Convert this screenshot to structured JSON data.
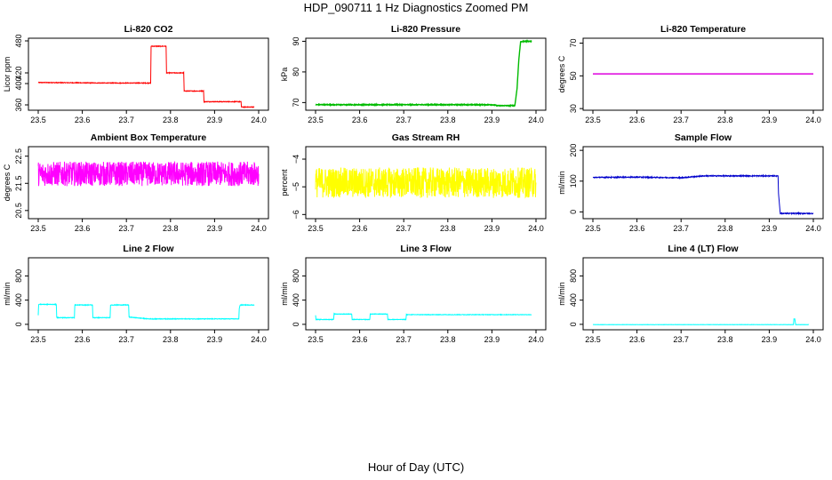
{
  "page": {
    "title": "HDP_090711  1 Hz Diagnostics Zoomed PM",
    "xlabel": "Hour of Day (UTC)"
  },
  "chart_data": [
    {
      "type": "line",
      "title": "Li-820 CO2",
      "xlabel": "",
      "ylabel": "Licor ppm",
      "xlim": [
        23.5,
        24.0
      ],
      "ylim": [
        350,
        485
      ],
      "xticks": [
        23.5,
        23.6,
        23.7,
        23.8,
        23.9,
        24.0
      ],
      "yticks": [
        360,
        400,
        420,
        480
      ],
      "color": "#ff0000",
      "noise": 0.6,
      "series": [
        {
          "x": [
            23.5,
            23.655,
            23.755,
            23.756,
            23.79,
            23.791,
            23.83,
            23.831,
            23.875,
            23.876,
            23.96,
            23.961,
            23.99
          ],
          "y": [
            402,
            401,
            401,
            470,
            470,
            420,
            420,
            386,
            386,
            366,
            366,
            356,
            356
          ]
        }
      ]
    },
    {
      "type": "line",
      "title": "Li-820 Pressure",
      "xlabel": "",
      "ylabel": "kPa",
      "xlim": [
        23.5,
        24.0
      ],
      "ylim": [
        67.5,
        91
      ],
      "xticks": [
        23.5,
        23.6,
        23.7,
        23.8,
        23.9,
        24.0
      ],
      "yticks": [
        70,
        80,
        90
      ],
      "color": "#00bb00",
      "noise": 0.12,
      "series": [
        {
          "x": [
            23.5,
            23.9,
            23.912,
            23.952,
            23.957,
            23.961,
            23.965,
            23.97,
            23.99
          ],
          "y": [
            69.3,
            69.3,
            69.0,
            69.0,
            74.5,
            84.0,
            89.7,
            90.0,
            90.0
          ]
        }
      ]
    },
    {
      "type": "line",
      "title": "Li-820 Temperature",
      "xlabel": "",
      "ylabel": "degrees C",
      "xlim": [
        23.5,
        24.0
      ],
      "ylim": [
        29,
        73
      ],
      "xticks": [
        23.5,
        23.6,
        23.7,
        23.8,
        23.9,
        24.0
      ],
      "yticks": [
        30,
        50,
        70
      ],
      "color": "#dd00dd",
      "noise": 0,
      "series": [
        {
          "x": [
            23.5,
            24.0
          ],
          "y": [
            51.2,
            51.2
          ]
        }
      ]
    },
    {
      "type": "line",
      "title": "Ambient Box Temperature",
      "xlabel": "",
      "ylabel": "degrees C",
      "xlim": [
        23.5,
        24.0
      ],
      "ylim": [
        20.2,
        22.85
      ],
      "xticks": [
        23.5,
        23.6,
        23.7,
        23.8,
        23.9,
        24.0
      ],
      "yticks": [
        20.5,
        21.5,
        22.5
      ],
      "color": "#ff00ff",
      "noise": 0.45,
      "series": [
        {
          "x": [
            23.5,
            24.0
          ],
          "y": [
            21.85,
            21.85
          ]
        }
      ]
    },
    {
      "type": "line",
      "title": "Gas Stream RH",
      "xlabel": "",
      "ylabel": "percent",
      "xlim": [
        23.5,
        24.0
      ],
      "ylim": [
        -6.15,
        -3.55
      ],
      "xticks": [
        23.5,
        23.6,
        23.7,
        23.8,
        23.9,
        24.0
      ],
      "yticks": [
        -6.0,
        -5.0,
        -4.0
      ],
      "color": "#ffff00",
      "noise": 0.55,
      "series": [
        {
          "x": [
            23.5,
            24.0
          ],
          "y": [
            -4.85,
            -4.85
          ]
        }
      ]
    },
    {
      "type": "line",
      "title": "Sample Flow",
      "xlabel": "",
      "ylabel": "ml/min",
      "xlim": [
        23.5,
        24.0
      ],
      "ylim": [
        -22,
        212
      ],
      "xticks": [
        23.5,
        23.6,
        23.7,
        23.8,
        23.9,
        24.0
      ],
      "yticks": [
        0,
        100,
        200
      ],
      "color": "#0000cc",
      "noise": 1.5,
      "series": [
        {
          "x": [
            23.5,
            23.6,
            23.7,
            23.75,
            23.92,
            23.921,
            23.925,
            24.0
          ],
          "y": [
            112,
            113,
            111,
            117,
            117,
            60,
            -5,
            -5
          ]
        }
      ]
    },
    {
      "type": "line",
      "title": "Line 2 Flow",
      "xlabel": "",
      "ylabel": "ml/min",
      "xlim": [
        23.5,
        24.0
      ],
      "ylim": [
        -90,
        1100
      ],
      "xticks": [
        23.5,
        23.6,
        23.7,
        23.8,
        23.9,
        24.0
      ],
      "yticks": [
        0,
        400,
        800
      ],
      "color": "#00ffff",
      "noise": 5,
      "series": [
        {
          "x": [
            23.5,
            23.501,
            23.541,
            23.542,
            23.582,
            23.583,
            23.623,
            23.624,
            23.663,
            23.664,
            23.705,
            23.706,
            23.75,
            23.955,
            23.956,
            23.958,
            23.99
          ],
          "y": [
            150,
            330,
            330,
            110,
            110,
            320,
            320,
            110,
            110,
            320,
            320,
            120,
            90,
            90,
            260,
            320,
            320
          ]
        }
      ]
    },
    {
      "type": "line",
      "title": "Line 3 Flow",
      "xlabel": "",
      "ylabel": "ml/min",
      "xlim": [
        23.5,
        24.0
      ],
      "ylim": [
        -90,
        1100
      ],
      "xticks": [
        23.5,
        23.6,
        23.7,
        23.8,
        23.9,
        24.0
      ],
      "yticks": [
        0,
        400,
        800
      ],
      "color": "#00ffff",
      "noise": 4,
      "series": [
        {
          "x": [
            23.5,
            23.501,
            23.541,
            23.542,
            23.582,
            23.583,
            23.623,
            23.624,
            23.663,
            23.664,
            23.705,
            23.706,
            23.99
          ],
          "y": [
            150,
            80,
            80,
            170,
            170,
            80,
            80,
            170,
            170,
            80,
            80,
            160,
            160
          ]
        }
      ]
    },
    {
      "type": "line",
      "title": "Line 4 (LT) Flow",
      "xlabel": "",
      "ylabel": "ml/min",
      "xlim": [
        23.5,
        24.0
      ],
      "ylim": [
        -90,
        1100
      ],
      "xticks": [
        23.5,
        23.6,
        23.7,
        23.8,
        23.9,
        24.0
      ],
      "yticks": [
        0,
        400,
        800
      ],
      "color": "#00ffff",
      "noise": 2,
      "series": [
        {
          "x": [
            23.5,
            23.955,
            23.956,
            23.958,
            23.96,
            23.99
          ],
          "y": [
            -5,
            -5,
            90,
            90,
            -5,
            -5
          ]
        }
      ]
    }
  ]
}
